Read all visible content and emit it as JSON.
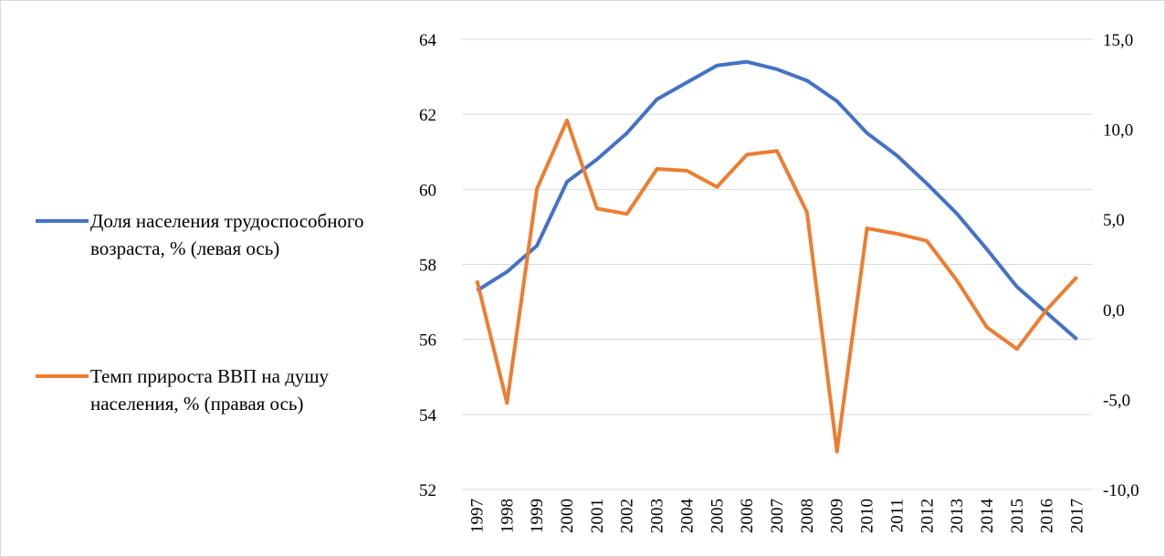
{
  "chart_data": {
    "type": "line",
    "categories": [
      "1997",
      "1998",
      "1999",
      "2000",
      "2001",
      "2002",
      "2003",
      "2004",
      "2005",
      "2006",
      "2007",
      "2008",
      "2009",
      "2010",
      "2011",
      "2012",
      "2013",
      "2014",
      "2015",
      "2016",
      "2017"
    ],
    "series": [
      {
        "name": "Доля населения трудоспособного возраста, % (левая ось)",
        "color": "#4472c4",
        "values": [
          57.3,
          57.8,
          58.5,
          60.2,
          60.8,
          61.5,
          62.4,
          62.85,
          63.3,
          63.4,
          63.2,
          62.9,
          62.35,
          61.5,
          60.9,
          60.15,
          59.35,
          58.4,
          57.4,
          56.7,
          56.0
        ]
      },
      {
        "name": "Темп прироста ВВП на душу населения, % (правая ось)",
        "color": "#ed7d31",
        "axis": "y2",
        "values": [
          1.6,
          -5.2,
          6.7,
          10.5,
          5.6,
          5.3,
          7.8,
          7.7,
          6.8,
          8.6,
          8.8,
          5.4,
          -7.9,
          4.5,
          4.2,
          3.8,
          1.6,
          -1.0,
          -2.2,
          0.0,
          1.8
        ]
      }
    ],
    "ylim": [
      52,
      64
    ],
    "yticks": [
      52,
      54,
      56,
      58,
      60,
      62,
      64
    ],
    "y2lim": [
      -10,
      15
    ],
    "y2ticks": [
      {
        "value": -10,
        "label": "-10,0"
      },
      {
        "value": -5,
        "label": "-5,0"
      },
      {
        "value": 0,
        "label": "0,0"
      },
      {
        "value": 5,
        "label": "5,0"
      },
      {
        "value": 10,
        "label": "10,0"
      },
      {
        "value": 15,
        "label": "15,0"
      }
    ],
    "grid": true,
    "legend": "left"
  }
}
